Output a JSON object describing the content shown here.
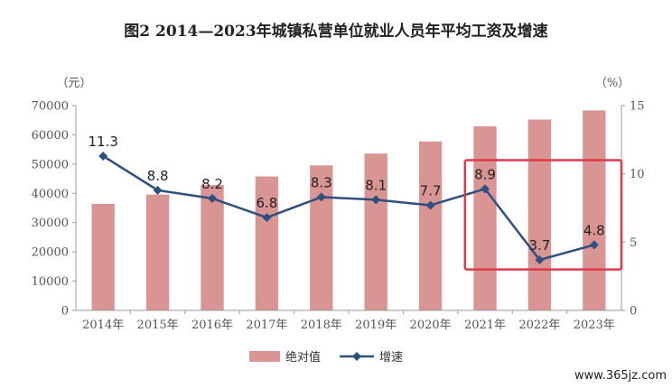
{
  "chart_data": {
    "type": "bar",
    "title": "图2 2014—2023年城镇私营单位就业人员年平均工资及增速",
    "y_left_unit": "（元）",
    "y_right_unit": "（%）",
    "categories": [
      "2014年",
      "2015年",
      "2016年",
      "2017年",
      "2018年",
      "2019年",
      "2020年",
      "2021年",
      "2022年",
      "2023年"
    ],
    "series": [
      {
        "name": "绝对值",
        "type": "bar",
        "axis": "left",
        "color": "#d99594",
        "values": [
          36390,
          39589,
          42833,
          45761,
          49575,
          53604,
          57727,
          62884,
          65237,
          68340
        ]
      },
      {
        "name": "增速",
        "type": "line",
        "axis": "right",
        "color": "#2f4f7f",
        "values": [
          11.3,
          8.8,
          8.2,
          6.8,
          8.3,
          8.1,
          7.7,
          8.9,
          3.7,
          4.8
        ]
      }
    ],
    "y_left_ticks": [
      "0",
      "10000",
      "20000",
      "30000",
      "40000",
      "50000",
      "60000",
      "70000"
    ],
    "y_left_lim": [
      0,
      70000
    ],
    "y_right_ticks": [
      "0",
      "5",
      "10",
      "15"
    ],
    "y_right_lim": [
      0,
      15
    ],
    "grid": false,
    "legend_position": "bottom",
    "highlight_box_color": "#e0394a",
    "highlight_categories": [
      "2021年",
      "2023年"
    ]
  },
  "watermark": "www.365jz.com"
}
